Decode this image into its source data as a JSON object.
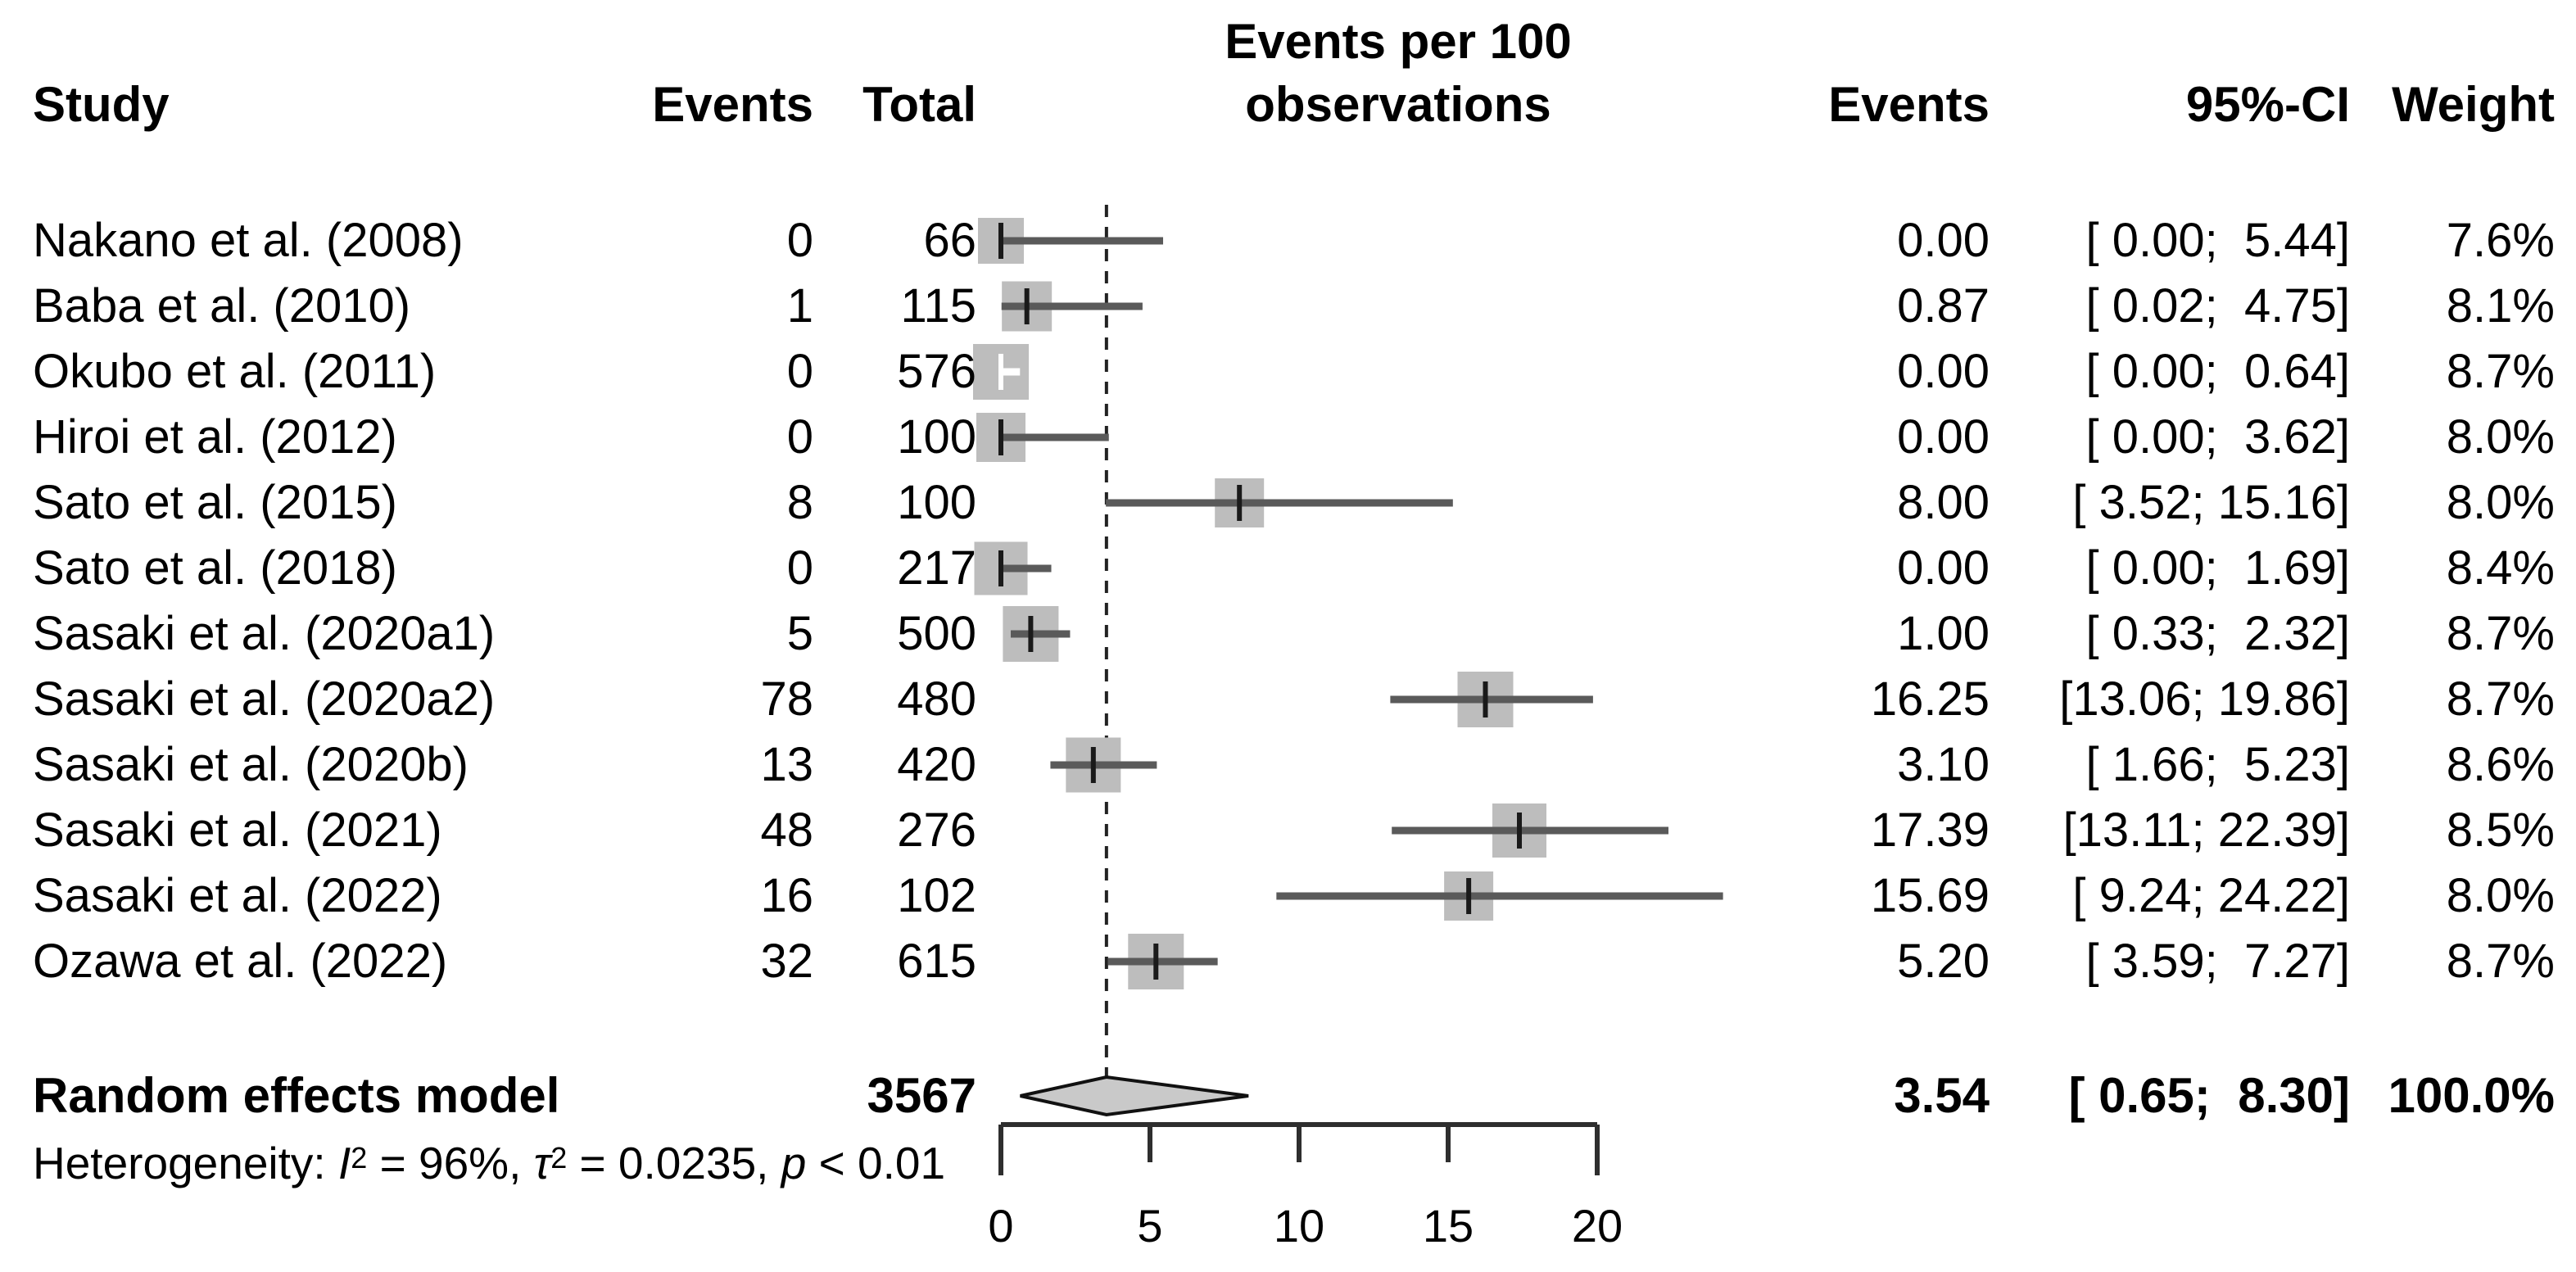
{
  "header": {
    "study": "Study",
    "events": "Events",
    "total": "Total",
    "title_line1": "Events per 100",
    "title_line2": "observations",
    "events_right": "Events",
    "ci": "95%-CI",
    "weight": "Weight"
  },
  "chart_data": {
    "type": "forest",
    "title": "Events per 100 observations",
    "x_axis": {
      "min": 0,
      "max": 20,
      "ticks": [
        0,
        5,
        10,
        15,
        20
      ],
      "grid": false
    },
    "studies": [
      {
        "study": "Nakano et al. (2008)",
        "events": "0",
        "total": "66",
        "rate": 0.0,
        "rate_text": "0.00",
        "ci_low": 0.0,
        "ci_high": 5.44,
        "ci_text": "[ 0.00;  5.44]",
        "weight_text": "7.6%",
        "weight": 7.6
      },
      {
        "study": "Baba et al. (2010)",
        "events": "1",
        "total": "115",
        "rate": 0.87,
        "rate_text": "0.87",
        "ci_low": 0.02,
        "ci_high": 4.75,
        "ci_text": "[ 0.02;  4.75]",
        "weight_text": "8.1%",
        "weight": 8.1
      },
      {
        "study": "Okubo et al. (2011)",
        "events": "0",
        "total": "576",
        "rate": 0.0,
        "rate_text": "0.00",
        "ci_low": 0.0,
        "ci_high": 0.64,
        "ci_text": "[ 0.00;  0.64]",
        "weight_text": "8.7%",
        "weight": 8.7
      },
      {
        "study": "Hiroi et al. (2012)",
        "events": "0",
        "total": "100",
        "rate": 0.0,
        "rate_text": "0.00",
        "ci_low": 0.0,
        "ci_high": 3.62,
        "ci_text": "[ 0.00;  3.62]",
        "weight_text": "8.0%",
        "weight": 8.0
      },
      {
        "study": "Sato et al. (2015)",
        "events": "8",
        "total": "100",
        "rate": 8.0,
        "rate_text": "8.00",
        "ci_low": 3.52,
        "ci_high": 15.16,
        "ci_text": "[ 3.52; 15.16]",
        "weight_text": "8.0%",
        "weight": 8.0
      },
      {
        "study": "Sato et al. (2018)",
        "events": "0",
        "total": "217",
        "rate": 0.0,
        "rate_text": "0.00",
        "ci_low": 0.0,
        "ci_high": 1.69,
        "ci_text": "[ 0.00;  1.69]",
        "weight_text": "8.4%",
        "weight": 8.4
      },
      {
        "study": "Sasaki et al. (2020a1)",
        "events": "5",
        "total": "500",
        "rate": 1.0,
        "rate_text": "1.00",
        "ci_low": 0.33,
        "ci_high": 2.32,
        "ci_text": "[ 0.33;  2.32]",
        "weight_text": "8.7%",
        "weight": 8.7
      },
      {
        "study": "Sasaki et al. (2020a2)",
        "events": "78",
        "total": "480",
        "rate": 16.25,
        "rate_text": "16.25",
        "ci_low": 13.06,
        "ci_high": 19.86,
        "ci_text": "[13.06; 19.86]",
        "weight_text": "8.7%",
        "weight": 8.7
      },
      {
        "study": "Sasaki et al. (2020b)",
        "events": "13",
        "total": "420",
        "rate": 3.1,
        "rate_text": "3.10",
        "ci_low": 1.66,
        "ci_high": 5.23,
        "ci_text": "[ 1.66;  5.23]",
        "weight_text": "8.6%",
        "weight": 8.6
      },
      {
        "study": "Sasaki et al. (2021)",
        "events": "48",
        "total": "276",
        "rate": 17.39,
        "rate_text": "17.39",
        "ci_low": 13.11,
        "ci_high": 22.39,
        "ci_text": "[13.11; 22.39]",
        "weight_text": "8.5%",
        "weight": 8.5
      },
      {
        "study": "Sasaki et al. (2022)",
        "events": "16",
        "total": "102",
        "rate": 15.69,
        "rate_text": "15.69",
        "ci_low": 9.24,
        "ci_high": 24.22,
        "ci_text": "[ 9.24; 24.22]",
        "weight_text": "8.0%",
        "weight": 8.0
      },
      {
        "study": "Ozawa et al. (2022)",
        "events": "32",
        "total": "615",
        "rate": 5.2,
        "rate_text": "5.20",
        "ci_low": 3.59,
        "ci_high": 7.27,
        "ci_text": "[ 3.59;  7.27]",
        "weight_text": "8.7%",
        "weight": 8.7
      }
    ],
    "pooled": {
      "label": "Random effects model",
      "total": "3567",
      "rate": 3.54,
      "rate_text": "3.54",
      "ci_low": 0.65,
      "ci_high": 8.3,
      "ci_text": "[ 0.65;  8.30]",
      "weight_text": "100.0%"
    },
    "heterogeneity": {
      "plain": "Heterogeneity: I2 = 96%, t2 = 0.0235, p < 0.01",
      "parts": [
        {
          "text": "Heterogeneity: "
        },
        {
          "text": "I",
          "italic": true
        },
        {
          "text": "2",
          "sup": true
        },
        {
          "text": " = 96%, "
        },
        {
          "text": "τ",
          "italic": true
        },
        {
          "text": "2",
          "sup": true
        },
        {
          "text": " = 0.0235, "
        },
        {
          "text": "p",
          "italic": true
        },
        {
          "text": " < 0.01"
        }
      ]
    }
  },
  "colors": {
    "square": "#bdbdbd",
    "whisker": "#5a5a5a",
    "whisker_inside_square": "#ffffff",
    "point_tick": "#1a1a1a",
    "diamond_fill": "#c9c9c9",
    "diamond_stroke": "#111111",
    "axis": "#2e2e2e",
    "dotted_line": "#222222",
    "text": "#000000"
  }
}
